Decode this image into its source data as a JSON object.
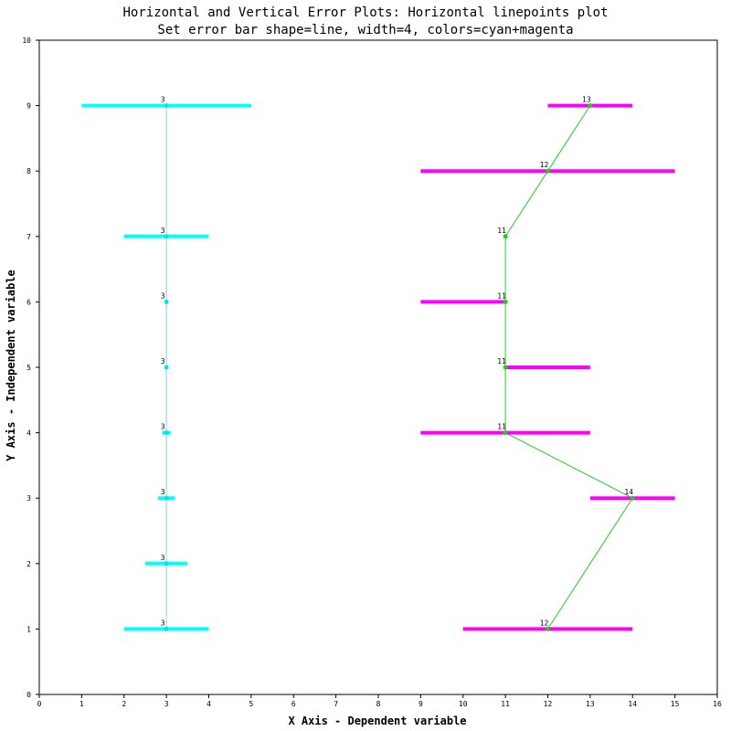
{
  "chart_data": {
    "type": "line",
    "title": "Horizontal and Vertical Error Plots: Horizontal linepoints plot",
    "subtitle": "Set error bar shape=line, width=4, colors=cyan+magenta",
    "xlabel": "X Axis - Dependent variable",
    "ylabel": "Y Axis - Independent variable",
    "xlim": [
      0,
      16
    ],
    "ylim": [
      0,
      10
    ],
    "xticks": [
      0,
      1,
      2,
      3,
      4,
      5,
      6,
      7,
      8,
      9,
      10,
      11,
      12,
      13,
      14,
      15,
      16
    ],
    "yticks": [
      0,
      1,
      2,
      3,
      4,
      5,
      6,
      7,
      8,
      9,
      10
    ],
    "grid": false,
    "series": [
      {
        "line_color": "#87d4e0",
        "point_color": "#00e5ee",
        "error_bar_color": "#00ffff",
        "points": [
          {
            "x": 3,
            "y": 1,
            "xerr_low": 2,
            "xerr_high": 4,
            "label": "3"
          },
          {
            "x": 3,
            "y": 2,
            "xerr_low": 2.5,
            "xerr_high": 3.5,
            "label": "3"
          },
          {
            "x": 3,
            "y": 3,
            "xerr_low": 2.8,
            "xerr_high": 3.2,
            "label": "3"
          },
          {
            "x": 3,
            "y": 4,
            "xerr_low": 2.9,
            "xerr_high": 3.1,
            "label": "3"
          },
          {
            "x": 3,
            "y": 5,
            "xerr_low": 3,
            "xerr_high": 3,
            "label": "3"
          },
          {
            "x": 3,
            "y": 6,
            "xerr_low": 3,
            "xerr_high": 3,
            "label": "3"
          },
          {
            "x": 3,
            "y": 7,
            "xerr_low": 2,
            "xerr_high": 4,
            "label": "3"
          },
          {
            "x": 3,
            "y": 9,
            "xerr_low": 1,
            "xerr_high": 5,
            "label": "3"
          }
        ]
      },
      {
        "line_color": "#22cc22",
        "point_color": "#22cc22",
        "error_bar_color": "#ff00ff",
        "points": [
          {
            "x": 12,
            "y": 1,
            "xerr_low": 10,
            "xerr_high": 14,
            "label": "12"
          },
          {
            "x": 14,
            "y": 3,
            "xerr_low": 13,
            "xerr_high": 15,
            "label": "14"
          },
          {
            "x": 11,
            "y": 4,
            "xerr_low": 9,
            "xerr_high": 13,
            "label": "11"
          },
          {
            "x": 11,
            "y": 5,
            "xerr_low": 11,
            "xerr_high": 13,
            "label": "11"
          },
          {
            "x": 11,
            "y": 6,
            "xerr_low": 9,
            "xerr_high": 11,
            "label": "11"
          },
          {
            "x": 11,
            "y": 7,
            "xerr_low": 11,
            "xerr_high": 11,
            "label": "11"
          },
          {
            "x": 12,
            "y": 8,
            "xerr_low": 9,
            "xerr_high": 15,
            "label": "12"
          },
          {
            "x": 13,
            "y": 9,
            "xerr_low": 12,
            "xerr_high": 14,
            "label": "13"
          }
        ]
      }
    ]
  }
}
